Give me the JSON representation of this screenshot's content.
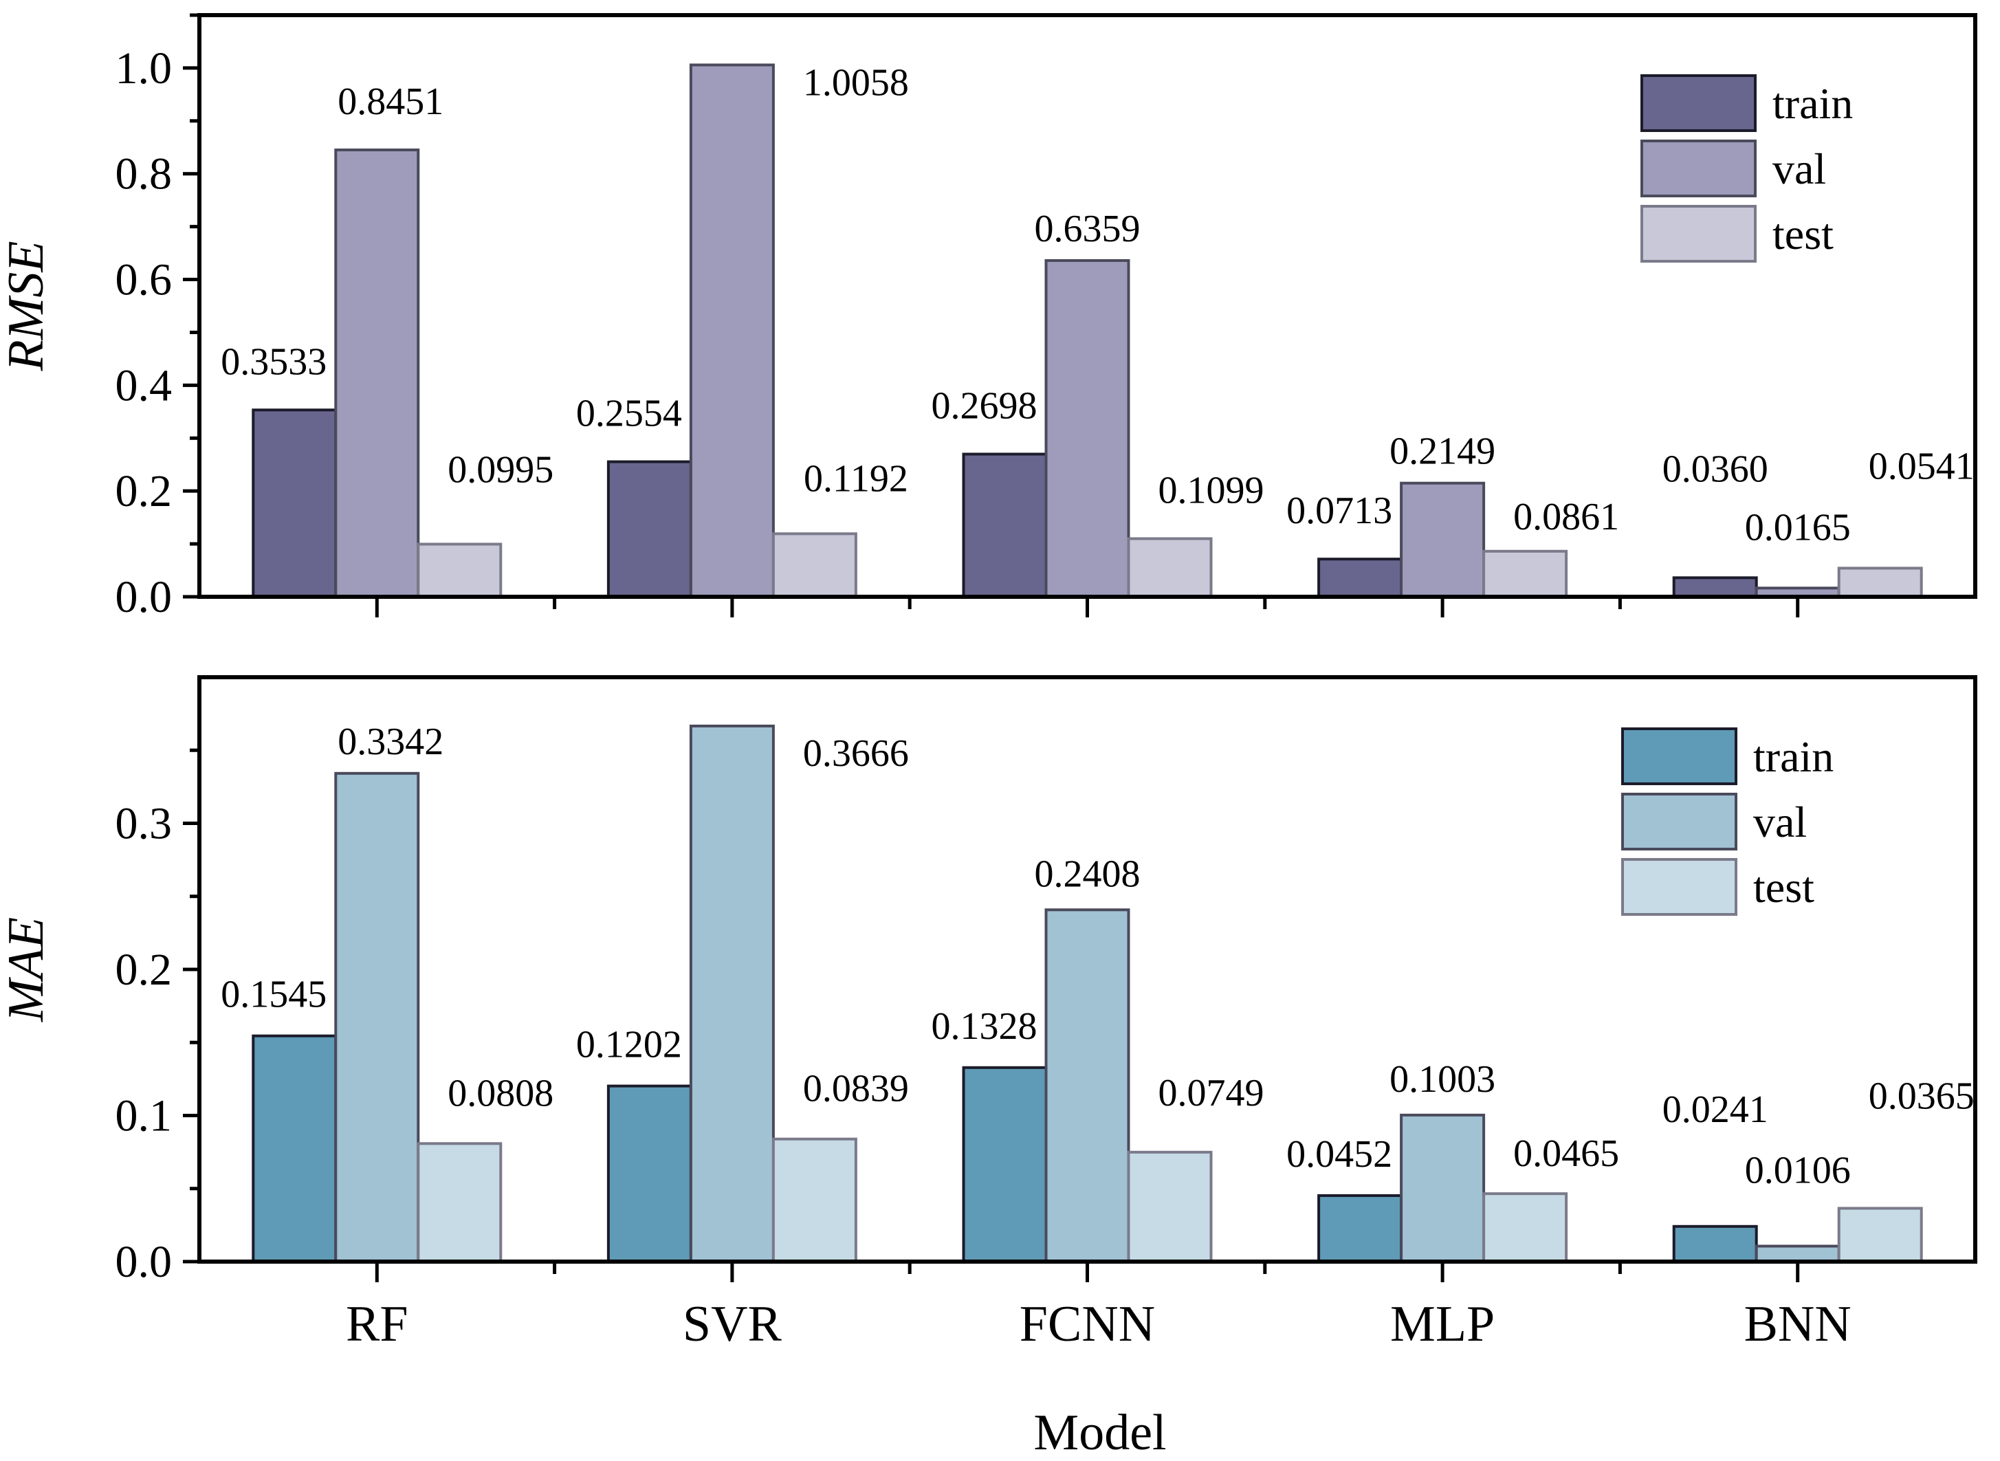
{
  "chart_data": [
    {
      "type": "bar",
      "title": "",
      "xlabel": "",
      "ylabel": "RMSE",
      "ylim": [
        0,
        1.1
      ],
      "yticks": [
        "0.0",
        "0.2",
        "0.4",
        "0.6",
        "0.8",
        "1.0"
      ],
      "categories": [
        "RF",
        "SVR",
        "FCNN",
        "MLP",
        "BNN"
      ],
      "legend_position": "top-right",
      "series": [
        {
          "name": "train",
          "color": "#68668e",
          "values": [
            0.3533,
            0.2554,
            0.2698,
            0.0713,
            0.036
          ],
          "labels": [
            "0.3533",
            "0.2554",
            "0.2698",
            "0.0713",
            "0.0360"
          ]
        },
        {
          "name": "val",
          "color": "#9e9cba",
          "values": [
            0.8451,
            1.0058,
            0.6359,
            0.2149,
            0.0165
          ],
          "labels": [
            "0.8451",
            "1.0058",
            "0.6359",
            "0.2149",
            "0.0165"
          ]
        },
        {
          "name": "test",
          "color": "#c9c8d9",
          "values": [
            0.0995,
            0.1192,
            0.1099,
            0.0861,
            0.0541
          ],
          "labels": [
            "0.0995",
            "0.1192",
            "0.1099",
            "0.0861",
            "0.0541"
          ]
        }
      ]
    },
    {
      "type": "bar",
      "title": "",
      "xlabel": "Model",
      "ylabel": "MAE",
      "ylim": [
        0,
        0.4
      ],
      "yticks": [
        "0.0",
        "0.1",
        "0.2",
        "0.3"
      ],
      "categories": [
        "RF",
        "SVR",
        "FCNN",
        "MLP",
        "BNN"
      ],
      "legend_position": "top-right",
      "series": [
        {
          "name": "train",
          "color": "#5f9ab6",
          "values": [
            0.1545,
            0.1202,
            0.1328,
            0.0452,
            0.0241
          ],
          "labels": [
            "0.1545",
            "0.1202",
            "0.1328",
            "0.0452",
            "0.0241"
          ]
        },
        {
          "name": "val",
          "color": "#a0c2d3",
          "values": [
            0.3342,
            0.3666,
            0.2408,
            0.1003,
            0.0106
          ],
          "labels": [
            "0.3342",
            "0.3666",
            "0.2408",
            "0.1003",
            "0.0106"
          ]
        },
        {
          "name": "test",
          "color": "#c6dbe5",
          "values": [
            0.0808,
            0.0839,
            0.0749,
            0.0465,
            0.0365
          ],
          "labels": [
            "0.0808",
            "0.0839",
            "0.0749",
            "0.0465",
            "0.0365"
          ]
        }
      ]
    }
  ]
}
